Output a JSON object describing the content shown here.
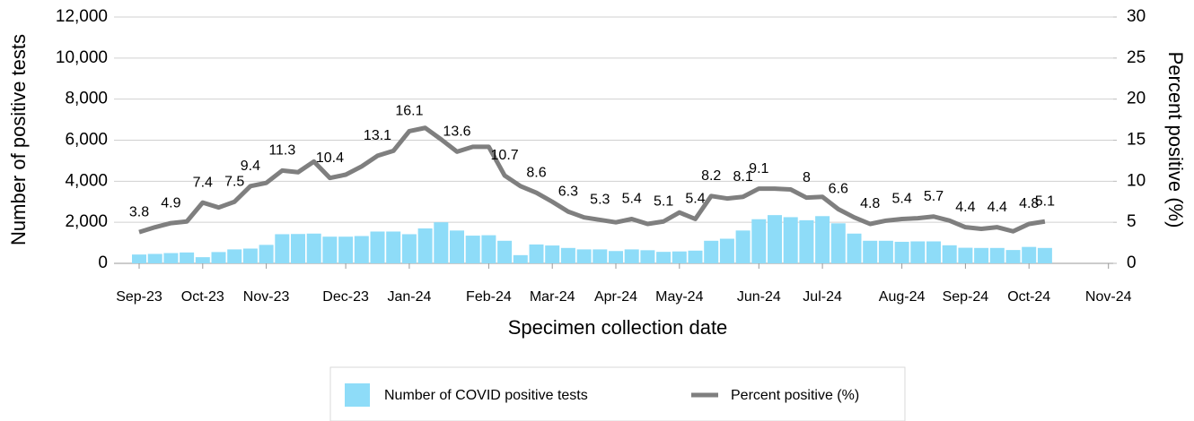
{
  "chart_data": {
    "type": "bar-line",
    "x_label": "Specimen collection date",
    "y_label": "Number of positive tests",
    "y2_label": "Percent positive (%)",
    "categories": [
      "Sep-23",
      null,
      null,
      null,
      "Oct-23",
      null,
      null,
      null,
      "Nov-23",
      null,
      null,
      null,
      null,
      "Dec-23",
      null,
      null,
      null,
      "Jan-24",
      null,
      null,
      null,
      null,
      "Feb-24",
      null,
      null,
      null,
      "Mar-24",
      null,
      null,
      null,
      "Apr-24",
      null,
      null,
      null,
      "May-24",
      null,
      null,
      null,
      null,
      "Jun-24",
      null,
      null,
      null,
      "Jul-24",
      null,
      null,
      null,
      null,
      "Aug-24",
      null,
      null,
      null,
      "Sep-24",
      null,
      null,
      null,
      "Oct-24",
      null,
      null,
      null,
      null,
      "Nov-24"
    ],
    "series": [
      {
        "name": "Number of COVID positive tests",
        "type": "bar",
        "color": "#8edcf8",
        "values": [
          430,
          460,
          500,
          530,
          300,
          550,
          680,
          720,
          900,
          1420,
          1430,
          1450,
          1300,
          1300,
          1330,
          1550,
          1550,
          1420,
          1700,
          2000,
          1600,
          1350,
          1370,
          1100,
          400,
          920,
          870,
          750,
          680,
          680,
          600,
          680,
          640,
          560,
          580,
          620,
          1100,
          1200,
          1600,
          2150,
          2350,
          2250,
          2100,
          2300,
          1950,
          1450,
          1100,
          1100,
          1050,
          1070,
          1070,
          880,
          760,
          750,
          750,
          650,
          800,
          750,
          null,
          null,
          null,
          null
        ]
      },
      {
        "name": "Percent positive (%)",
        "type": "line",
        "axis": "y2",
        "color": "#7f7f7f",
        "values": [
          3.8,
          4.4,
          4.9,
          5.1,
          7.4,
          6.8,
          7.5,
          9.4,
          9.8,
          11.3,
          11.1,
          12.4,
          10.4,
          10.8,
          11.8,
          13.1,
          13.7,
          16.1,
          16.5,
          15.1,
          13.6,
          14.2,
          14.2,
          10.7,
          9.4,
          8.6,
          7.5,
          6.3,
          5.6,
          5.3,
          5.0,
          5.4,
          4.8,
          5.1,
          6.2,
          5.4,
          8.2,
          7.9,
          8.1,
          9.1,
          9.1,
          9.0,
          8,
          8.1,
          6.6,
          5.6,
          4.8,
          5.2,
          5.4,
          5.5,
          5.7,
          5.2,
          4.4,
          4.2,
          4.4,
          3.9,
          4.8,
          5.1,
          null,
          null,
          null,
          null
        ],
        "value_labels": [
          "3.8",
          null,
          "4.9",
          null,
          "7.4",
          null,
          "7.5",
          "9.4",
          null,
          "11.3",
          null,
          null,
          "10.4",
          null,
          null,
          "13.1",
          null,
          "16.1",
          null,
          null,
          "13.6",
          null,
          null,
          "10.7",
          null,
          "8.6",
          null,
          "6.3",
          null,
          "5.3",
          null,
          "5.4",
          null,
          "5.1",
          null,
          "5.4",
          "8.2",
          null,
          "8.1",
          "9.1",
          null,
          null,
          "8",
          null,
          "6.6",
          null,
          "4.8",
          null,
          "5.4",
          null,
          "5.7",
          null,
          "4.4",
          null,
          "4.4",
          null,
          "4.8",
          "5.1",
          null,
          null,
          null,
          null
        ]
      }
    ],
    "ylim": [
      0,
      12000
    ],
    "yticks": [
      0,
      {
        "value": 2000,
        "label": "2,000"
      },
      {
        "value": 4000,
        "label": "4,000"
      },
      {
        "value": 6000,
        "label": "6,000"
      },
      {
        "value": 8000,
        "label": "8,000"
      },
      {
        "value": 10000,
        "label": "10,000"
      },
      {
        "value": 12000,
        "label": "12,000"
      }
    ],
    "y2lim": [
      0,
      30
    ],
    "y2ticks": [
      0,
      5,
      10,
      15,
      20,
      25,
      30
    ],
    "grid": true,
    "legend": "bottom"
  }
}
